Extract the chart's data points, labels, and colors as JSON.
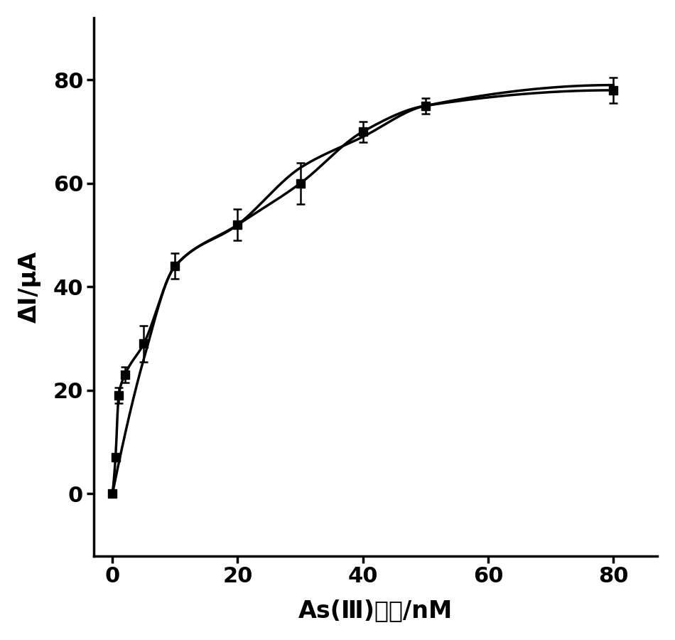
{
  "xlabel": "As(Ⅲ)浓度/nM",
  "ylabel": "ΔI/μA",
  "xlim": [
    -3,
    87
  ],
  "ylim": [
    -12,
    92
  ],
  "xticks": [
    0,
    20,
    40,
    60,
    80
  ],
  "yticks": [
    0,
    20,
    40,
    60,
    80
  ],
  "background_color": "#ffffff",
  "line_color": "#000000",
  "marker": "s",
  "markersize": 8,
  "linewidth": 2.5,
  "series1_x": [
    0,
    0.5,
    1,
    2,
    5,
    10,
    20,
    30,
    40,
    50,
    80
  ],
  "series1_y": [
    0,
    7,
    19,
    23,
    29,
    44,
    52,
    60,
    70,
    75,
    78
  ],
  "series1_yerr": [
    0.3,
    0.5,
    1.5,
    1.5,
    3.5,
    2.5,
    3.0,
    4.0,
    2.0,
    1.5,
    2.5
  ],
  "series2_x": [
    0,
    5,
    10,
    20,
    30,
    40,
    50,
    80
  ],
  "series2_y": [
    0,
    26,
    44,
    52,
    63,
    69,
    75,
    79
  ],
  "xlabel_fontsize": 24,
  "ylabel_fontsize": 24,
  "tick_fontsize": 22,
  "tick_fontweight": "bold",
  "label_fontweight": "bold",
  "figwidth": 9.5,
  "figheight": 9.0,
  "dpi": 100
}
